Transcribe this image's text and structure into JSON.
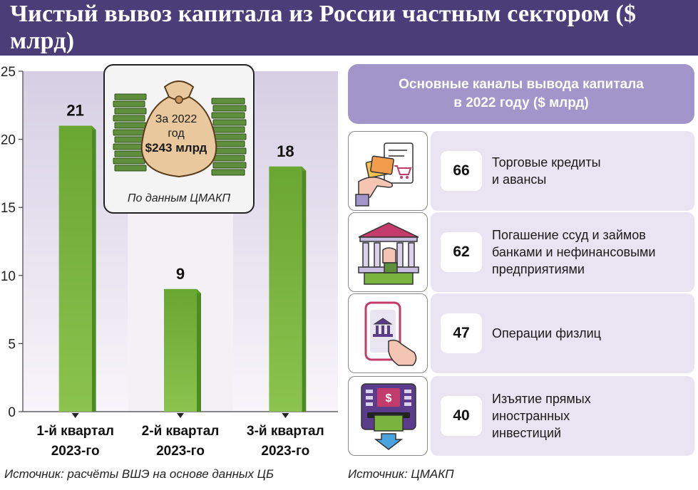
{
  "title": "Чистый вывоз капитала из России частным сектором ($ млрд)",
  "chart_data": {
    "type": "bar",
    "categories": [
      [
        "1-й квартал",
        "2023-го"
      ],
      [
        "2-й квартал",
        "2023-го"
      ],
      [
        "3-й квартал",
        "2023-го"
      ]
    ],
    "values": [
      21,
      9,
      18
    ],
    "ylim": [
      0,
      25
    ],
    "yticks": [
      0,
      5,
      10,
      15,
      20,
      25
    ],
    "grid": false,
    "colors": {
      "bar": "#7ab33e",
      "bar_dark": "#4e8a22",
      "band_light": "#e7e2f0",
      "band_dark": "#d6cfe4"
    }
  },
  "callout": {
    "line1": "За 2022",
    "line2": "год",
    "amount": "$243 млрд",
    "source": "По данным ЦМАКП"
  },
  "source_left": "Источник: расчёты ВШЭ на основе данных ЦБ",
  "source_right": "Источник: ЦМАКП",
  "panel": {
    "header": "Основные каналы вывода капитала\nв 2022 году ($ млрд)",
    "channels": [
      {
        "value": "66",
        "label": "Торговые кредиты\nи авансы",
        "icon": "card-receipt-icon"
      },
      {
        "value": "62",
        "label": "Погашение ссуд и займов\nбанками и нефинансовыми\nпредприятиями",
        "icon": "bank-icon"
      },
      {
        "value": "47",
        "label": "Операции физлиц",
        "icon": "phone-bank-icon"
      },
      {
        "value": "40",
        "label": "Изъятие прямых\nиностранных\nинвестиций",
        "icon": "atm-icon"
      }
    ]
  }
}
